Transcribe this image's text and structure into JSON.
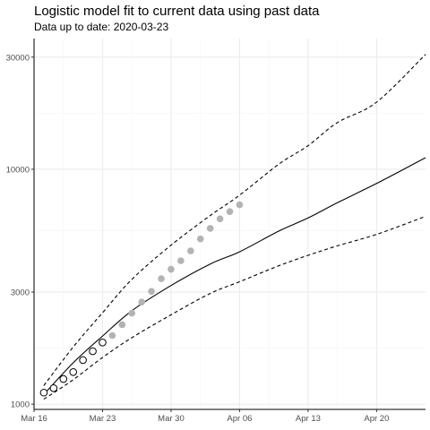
{
  "chart_data": {
    "type": "line",
    "title": "Logistic model fit to current data using past data",
    "subtitle": "Data up to date: 2020-03-23",
    "y_scale": "log",
    "ylim": [
      950,
      36000
    ],
    "xlim": [
      "2020-03-16",
      "2020-04-25"
    ],
    "y_ticks": [
      {
        "value": 1000,
        "label": "1000"
      },
      {
        "value": 3000,
        "label": "3000"
      },
      {
        "value": 10000,
        "label": "10000"
      },
      {
        "value": 30000,
        "label": "30000"
      }
    ],
    "x_ticks": [
      {
        "value": "2020-03-16",
        "label": "Mar 16"
      },
      {
        "value": "2020-03-23",
        "label": "Mar 23"
      },
      {
        "value": "2020-03-30",
        "label": "Mar 30"
      },
      {
        "value": "2020-04-06",
        "label": "Apr 06"
      },
      {
        "value": "2020-04-13",
        "label": "Apr 13"
      },
      {
        "value": "2020-04-20",
        "label": "Apr 20"
      }
    ],
    "grid": true,
    "series": [
      {
        "role": "fit",
        "style": "solid",
        "color": "#000000",
        "points": [
          [
            "2020-03-17",
            1100
          ],
          [
            "2020-03-20",
            1500
          ],
          [
            "2020-03-23",
            1950
          ],
          [
            "2020-03-26",
            2500
          ],
          [
            "2020-03-30",
            3200
          ],
          [
            "2020-04-03",
            3950
          ],
          [
            "2020-04-06",
            4450
          ],
          [
            "2020-04-10",
            5450
          ],
          [
            "2020-04-13",
            6200
          ],
          [
            "2020-04-16",
            7200
          ],
          [
            "2020-04-20",
            8700
          ],
          [
            "2020-04-25",
            11200
          ]
        ]
      },
      {
        "role": "upper",
        "style": "dashed",
        "color": "#000000",
        "points": [
          [
            "2020-03-17",
            1200
          ],
          [
            "2020-03-20",
            1750
          ],
          [
            "2020-03-23",
            2450
          ],
          [
            "2020-03-26",
            3400
          ],
          [
            "2020-03-30",
            4750
          ],
          [
            "2020-04-03",
            6350
          ],
          [
            "2020-04-06",
            7750
          ],
          [
            "2020-04-10",
            10500
          ],
          [
            "2020-04-13",
            12600
          ],
          [
            "2020-04-16",
            15800
          ],
          [
            "2020-04-20",
            19300
          ],
          [
            "2020-04-25",
            30800
          ]
        ]
      },
      {
        "role": "lower",
        "style": "dashed",
        "color": "#000000",
        "points": [
          [
            "2020-03-17",
            1050
          ],
          [
            "2020-03-20",
            1270
          ],
          [
            "2020-03-23",
            1580
          ],
          [
            "2020-03-26",
            1920
          ],
          [
            "2020-03-30",
            2400
          ],
          [
            "2020-04-03",
            2960
          ],
          [
            "2020-04-06",
            3320
          ],
          [
            "2020-04-10",
            3880
          ],
          [
            "2020-04-13",
            4300
          ],
          [
            "2020-04-16",
            4720
          ],
          [
            "2020-04-20",
            5280
          ],
          [
            "2020-04-25",
            6300
          ]
        ]
      }
    ],
    "observed_past": {
      "fill": "#ffffff",
      "stroke": "#000000",
      "points": [
        [
          "2020-03-17",
          1120
        ],
        [
          "2020-03-18",
          1170
        ],
        [
          "2020-03-19",
          1280
        ],
        [
          "2020-03-20",
          1370
        ],
        [
          "2020-03-21",
          1540
        ],
        [
          "2020-03-22",
          1680
        ],
        [
          "2020-03-23",
          1830
        ]
      ]
    },
    "observed_future": {
      "fill": "#b3b3b3",
      "points": [
        [
          "2020-03-24",
          1960
        ],
        [
          "2020-03-25",
          2180
        ],
        [
          "2020-03-26",
          2440
        ],
        [
          "2020-03-27",
          2720
        ],
        [
          "2020-03-28",
          3020
        ],
        [
          "2020-03-29",
          3420
        ],
        [
          "2020-03-30",
          3750
        ],
        [
          "2020-03-31",
          4080
        ],
        [
          "2020-04-01",
          4490
        ],
        [
          "2020-04-02",
          5050
        ],
        [
          "2020-04-03",
          5600
        ],
        [
          "2020-04-04",
          6150
        ],
        [
          "2020-04-05",
          6600
        ],
        [
          "2020-04-06",
          7060
        ]
      ]
    }
  }
}
